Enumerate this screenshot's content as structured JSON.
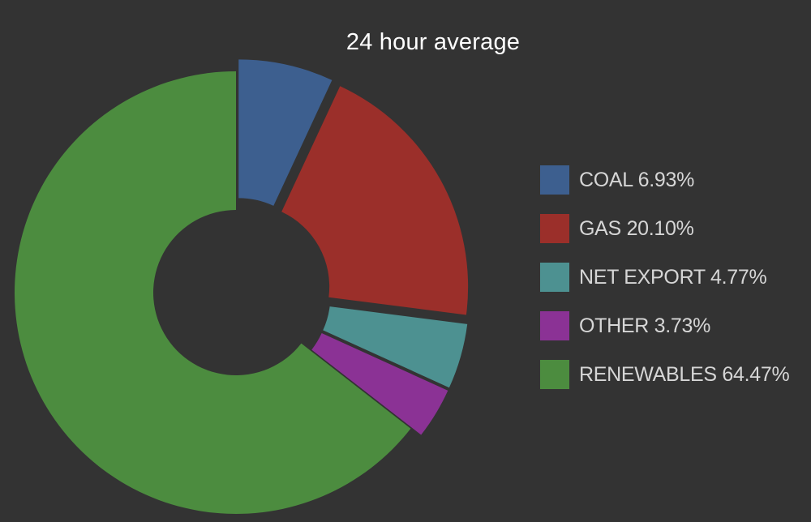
{
  "chart_data": {
    "type": "pie",
    "title": "24 hour average",
    "donut": true,
    "legend_placement": "right",
    "slices": [
      {
        "label": "COAL",
        "value": 6.93,
        "value_text": "6.93%",
        "color": "#3d5f8f",
        "exploded": true
      },
      {
        "label": "GAS",
        "value": 20.1,
        "value_text": "20.10%",
        "color": "#9b2f2a",
        "exploded": true
      },
      {
        "label": "NET EXPORT",
        "value": 4.77,
        "value_text": "4.77%",
        "color": "#4d9191",
        "exploded": true
      },
      {
        "label": "OTHER",
        "value": 3.73,
        "value_text": "3.73%",
        "color": "#8b3295",
        "exploded": true
      },
      {
        "label": "RENEWABLES",
        "value": 64.47,
        "value_text": "64.47%",
        "color": "#4c8c3f",
        "exploded": false
      }
    ]
  }
}
